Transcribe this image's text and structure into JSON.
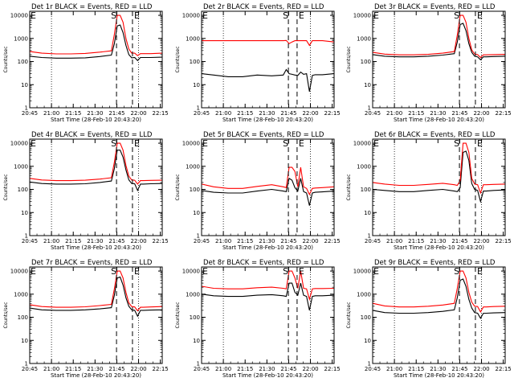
{
  "figure": {
    "x_tick_labels": [
      "20:45",
      "21:00",
      "21:15",
      "21:30",
      "21:45",
      "22:00",
      "22:15"
    ],
    "x_label": "Start Time (28-Feb-10 20:43:20)",
    "y_label": "Counts/sec",
    "marker_start": "S",
    "marker_end": "E",
    "marker_panel_edge": "E"
  },
  "chart_data": [
    {
      "type": "line",
      "title": "Det 1r BLACK = Events, RED = LLD",
      "xlabel": "Start Time (28-Feb-10 20:43:20)",
      "ylabel": "Counts/sec",
      "yscale": "log",
      "xlim_minutes_after_start": [
        1.7,
        93
      ],
      "ylim": [
        1,
        15000
      ],
      "y_tick_labels": [
        "1",
        "10",
        "100",
        "1000",
        "10000"
      ],
      "dotted_lines_minutes": [
        16.7,
        76.7
      ],
      "dashed_lines_minutes": [
        61.5,
        72.5
      ],
      "series": [
        {
          "name": "Events",
          "color": "#000000",
          "x": [
            1.7,
            10,
            20,
            30,
            40,
            50,
            58,
            60,
            62,
            64,
            66,
            68,
            70,
            72,
            74,
            76,
            78,
            80,
            85,
            93
          ],
          "y": [
            170,
            150,
            140,
            140,
            145,
            165,
            190,
            600,
            3500,
            3800,
            1800,
            500,
            200,
            145,
            150,
            110,
            150,
            150,
            150,
            155
          ]
        },
        {
          "name": "LLD",
          "color": "#ff0000",
          "x": [
            1.7,
            10,
            20,
            30,
            40,
            50,
            58,
            60,
            62,
            64,
            66,
            68,
            70,
            72,
            74,
            76,
            78,
            80,
            85,
            93
          ],
          "y": [
            270,
            230,
            215,
            215,
            225,
            255,
            290,
            1500,
            10000,
            10000,
            5000,
            1000,
            350,
            230,
            230,
            180,
            220,
            220,
            220,
            230
          ]
        }
      ]
    },
    {
      "type": "line",
      "title": "Det 2r BLACK = Events, RED = LLD",
      "xlabel": "Start Time (28-Feb-10 20:43:20)",
      "ylabel": "Counts/sec",
      "yscale": "log",
      "xlim_minutes_after_start": [
        1.7,
        93
      ],
      "ylim": [
        1,
        15000
      ],
      "y_tick_labels": [
        "1",
        "10",
        "100",
        "1000",
        "10000"
      ],
      "dotted_lines_minutes": [
        16.7,
        76.7
      ],
      "dashed_lines_minutes": [
        61.5,
        67.5
      ],
      "series": [
        {
          "name": "Events",
          "color": "#000000",
          "x": [
            1.7,
            10,
            20,
            30,
            40,
            50,
            58,
            60,
            62,
            64,
            66,
            68,
            70,
            72,
            74,
            76,
            78,
            80,
            85,
            93
          ],
          "y": [
            30,
            26,
            22,
            22,
            26,
            24,
            26,
            45,
            30,
            28,
            26,
            25,
            35,
            28,
            30,
            5,
            25,
            27,
            27,
            30
          ]
        },
        {
          "name": "LLD",
          "color": "#ff0000",
          "x": [
            1.7,
            10,
            20,
            30,
            40,
            50,
            58,
            60,
            62,
            64,
            66,
            68,
            70,
            72,
            74,
            76,
            78,
            80,
            85,
            93
          ],
          "y": [
            800,
            800,
            800,
            800,
            800,
            800,
            800,
            820,
            600,
            700,
            800,
            800,
            800,
            800,
            800,
            500,
            800,
            800,
            800,
            700
          ]
        }
      ]
    },
    {
      "type": "line",
      "title": "Det 3r BLACK = Events, RED = LLD",
      "xlabel": "Start Time (28-Feb-10 20:43:20)",
      "ylabel": "Counts/sec",
      "yscale": "log",
      "xlim_minutes_after_start": [
        1.7,
        93
      ],
      "ylim": [
        1,
        15000
      ],
      "y_tick_labels": [
        "1",
        "10",
        "100",
        "1000",
        "10000"
      ],
      "dotted_lines_minutes": [
        16.7,
        76.7
      ],
      "dashed_lines_minutes": [
        61.5,
        72.5
      ],
      "series": [
        {
          "name": "Events",
          "color": "#000000",
          "x": [
            1.7,
            10,
            20,
            30,
            40,
            50,
            58,
            60,
            62,
            64,
            66,
            68,
            70,
            72,
            74,
            76,
            78,
            80,
            85,
            93
          ],
          "y": [
            200,
            170,
            160,
            160,
            170,
            190,
            220,
            700,
            4000,
            4500,
            2200,
            600,
            250,
            170,
            160,
            120,
            160,
            160,
            165,
            170
          ]
        },
        {
          "name": "LLD",
          "color": "#ff0000",
          "x": [
            1.7,
            10,
            20,
            30,
            40,
            50,
            58,
            60,
            62,
            64,
            66,
            68,
            70,
            72,
            74,
            76,
            78,
            80,
            85,
            93
          ],
          "y": [
            250,
            210,
            195,
            195,
            205,
            230,
            270,
            1400,
            10000,
            10000,
            5000,
            1000,
            320,
            210,
            200,
            150,
            195,
            195,
            200,
            205
          ]
        }
      ]
    },
    {
      "type": "line",
      "title": "Det 4r BLACK = Events, RED = LLD",
      "xlabel": "Start Time (28-Feb-10 20:43:20)",
      "ylabel": "Counts/sec",
      "yscale": "log",
      "xlim_minutes_after_start": [
        1.7,
        93
      ],
      "ylim": [
        1,
        15000
      ],
      "y_tick_labels": [
        "1",
        "10",
        "100",
        "1000",
        "10000"
      ],
      "dotted_lines_minutes": [
        16.7,
        76.7
      ],
      "dashed_lines_minutes": [
        61.5,
        72.5
      ],
      "series": [
        {
          "name": "Events",
          "color": "#000000",
          "x": [
            1.7,
            10,
            20,
            30,
            40,
            50,
            58,
            60,
            62,
            64,
            66,
            68,
            70,
            72,
            74,
            76,
            78,
            80,
            85,
            93
          ],
          "y": [
            210,
            180,
            170,
            170,
            175,
            200,
            230,
            800,
            5000,
            5000,
            2500,
            700,
            260,
            180,
            175,
            90,
            170,
            170,
            175,
            180
          ]
        },
        {
          "name": "LLD",
          "color": "#ff0000",
          "x": [
            1.7,
            10,
            20,
            30,
            40,
            50,
            58,
            60,
            62,
            64,
            66,
            68,
            70,
            72,
            74,
            76,
            78,
            80,
            85,
            93
          ],
          "y": [
            300,
            255,
            240,
            240,
            250,
            280,
            320,
            1500,
            10000,
            10000,
            5000,
            1100,
            380,
            255,
            250,
            170,
            240,
            240,
            245,
            250
          ]
        }
      ]
    },
    {
      "type": "line",
      "title": "Det 5r BLACK = Events, RED = LLD",
      "xlabel": "Start Time (28-Feb-10 20:43:20)",
      "ylabel": "Counts/sec",
      "yscale": "log",
      "xlim_minutes_after_start": [
        1.7,
        93
      ],
      "ylim": [
        1,
        15000
      ],
      "y_tick_labels": [
        "1",
        "10",
        "100",
        "1000",
        "10000"
      ],
      "dotted_lines_minutes": [
        16.7,
        76.7
      ],
      "dashed_lines_minutes": [
        61.5,
        67.5
      ],
      "series": [
        {
          "name": "Events",
          "color": "#000000",
          "x": [
            1.7,
            10,
            20,
            30,
            40,
            50,
            58,
            60,
            62,
            64,
            66,
            68,
            70,
            72,
            74,
            76,
            78,
            80,
            85,
            93
          ],
          "y": [
            90,
            75,
            70,
            70,
            85,
            100,
            85,
            80,
            300,
            250,
            120,
            85,
            300,
            80,
            70,
            20,
            70,
            75,
            78,
            85
          ]
        },
        {
          "name": "LLD",
          "color": "#ff0000",
          "x": [
            1.7,
            10,
            20,
            30,
            40,
            50,
            58,
            60,
            62,
            64,
            66,
            68,
            70,
            72,
            74,
            76,
            78,
            80,
            85,
            93
          ],
          "y": [
            170,
            130,
            110,
            110,
            135,
            160,
            130,
            120,
            900,
            900,
            600,
            130,
            900,
            130,
            110,
            60,
            110,
            115,
            120,
            130
          ]
        }
      ]
    },
    {
      "type": "line",
      "title": "Det 6r BLACK = Events, RED = LLD",
      "xlabel": "Start Time (28-Feb-10 20:43:20)",
      "ylabel": "Counts/sec",
      "yscale": "log",
      "xlim_minutes_after_start": [
        1.7,
        93
      ],
      "ylim": [
        1,
        15000
      ],
      "y_tick_labels": [
        "1",
        "10",
        "100",
        "1000",
        "10000"
      ],
      "dotted_lines_minutes": [
        16.7,
        76.7
      ],
      "dashed_lines_minutes": [
        61.5,
        72.5
      ],
      "series": [
        {
          "name": "Events",
          "color": "#000000",
          "x": [
            1.7,
            10,
            20,
            30,
            40,
            50,
            58,
            60,
            62,
            64,
            66,
            68,
            70,
            72,
            74,
            76,
            78,
            80,
            85,
            93
          ],
          "y": [
            100,
            90,
            80,
            80,
            90,
            100,
            85,
            80,
            120,
            4000,
            4500,
            1800,
            180,
            100,
            90,
            30,
            85,
            85,
            90,
            95
          ]
        },
        {
          "name": "LLD",
          "color": "#ff0000",
          "x": [
            1.7,
            10,
            20,
            30,
            40,
            50,
            58,
            60,
            62,
            64,
            66,
            68,
            70,
            72,
            74,
            76,
            78,
            80,
            85,
            93
          ],
          "y": [
            200,
            170,
            150,
            150,
            165,
            185,
            160,
            150,
            240,
            10000,
            10000,
            4000,
            300,
            170,
            160,
            70,
            160,
            160,
            165,
            170
          ]
        }
      ]
    },
    {
      "type": "line",
      "title": "Det 7r BLACK = Events, RED = LLD",
      "xlabel": "Start Time (28-Feb-10 20:43:20)",
      "ylabel": "Counts/sec",
      "yscale": "log",
      "xlim_minutes_after_start": [
        1.7,
        93
      ],
      "ylim": [
        1,
        15000
      ],
      "y_tick_labels": [
        "1",
        "10",
        "100",
        "1000",
        "10000"
      ],
      "dotted_lines_minutes": [
        16.7,
        76.7
      ],
      "dashed_lines_minutes": [
        61.5,
        72.5
      ],
      "series": [
        {
          "name": "Events",
          "color": "#000000",
          "x": [
            1.7,
            10,
            20,
            30,
            40,
            50,
            58,
            60,
            62,
            64,
            66,
            68,
            70,
            72,
            74,
            76,
            78,
            80,
            85,
            93
          ],
          "y": [
            250,
            210,
            200,
            200,
            210,
            230,
            260,
            900,
            5000,
            5500,
            2500,
            700,
            300,
            210,
            200,
            110,
            200,
            200,
            205,
            210
          ]
        },
        {
          "name": "LLD",
          "color": "#ff0000",
          "x": [
            1.7,
            10,
            20,
            30,
            40,
            50,
            58,
            60,
            62,
            64,
            66,
            68,
            70,
            72,
            74,
            76,
            78,
            80,
            85,
            93
          ],
          "y": [
            350,
            290,
            270,
            270,
            285,
            320,
            360,
            1700,
            10000,
            10000,
            5000,
            1200,
            420,
            290,
            280,
            190,
            270,
            270,
            280,
            290
          ]
        }
      ]
    },
    {
      "type": "line",
      "title": "Det 8r BLACK = Events, RED = LLD",
      "xlabel": "Start Time (28-Feb-10 20:43:20)",
      "ylabel": "Counts/sec",
      "yscale": "log",
      "xlim_minutes_after_start": [
        1.7,
        93
      ],
      "ylim": [
        1,
        15000
      ],
      "y_tick_labels": [
        "1",
        "10",
        "100",
        "1000",
        "10000"
      ],
      "dotted_lines_minutes": [
        16.7,
        76.7
      ],
      "dashed_lines_minutes": [
        61.5,
        67.5
      ],
      "series": [
        {
          "name": "Events",
          "color": "#000000",
          "x": [
            1.7,
            10,
            20,
            30,
            40,
            50,
            58,
            60,
            62,
            64,
            66,
            68,
            70,
            72,
            74,
            76,
            78,
            80,
            85,
            93
          ],
          "y": [
            1000,
            850,
            800,
            800,
            900,
            950,
            850,
            800,
            3000,
            3000,
            1200,
            900,
            3000,
            900,
            800,
            200,
            800,
            850,
            850,
            900
          ]
        },
        {
          "name": "LLD",
          "color": "#ff0000",
          "x": [
            1.7,
            10,
            20,
            30,
            40,
            50,
            58,
            60,
            62,
            64,
            66,
            68,
            70,
            72,
            74,
            76,
            78,
            80,
            85,
            93
          ],
          "y": [
            2200,
            1800,
            1700,
            1700,
            1900,
            2000,
            1800,
            1700,
            10000,
            10000,
            5000,
            1800,
            10000,
            1800,
            1700,
            600,
            1700,
            1750,
            1750,
            1800
          ]
        }
      ]
    },
    {
      "type": "line",
      "title": "Det 9r BLACK = Events, RED = LLD",
      "xlabel": "Start Time (28-Feb-10 20:43:20)",
      "ylabel": "Counts/sec",
      "yscale": "log",
      "xlim_minutes_after_start": [
        1.7,
        93
      ],
      "ylim": [
        1,
        15000
      ],
      "y_tick_labels": [
        "1",
        "10",
        "100",
        "1000",
        "10000"
      ],
      "dotted_lines_minutes": [
        16.7,
        76.7
      ],
      "dashed_lines_minutes": [
        61.5,
        72.5
      ],
      "series": [
        {
          "name": "Events",
          "color": "#000000",
          "x": [
            1.7,
            10,
            20,
            30,
            40,
            50,
            58,
            60,
            62,
            64,
            66,
            68,
            70,
            72,
            74,
            76,
            78,
            80,
            85,
            93
          ],
          "y": [
            200,
            160,
            150,
            150,
            160,
            180,
            210,
            700,
            4000,
            4500,
            2200,
            600,
            250,
            160,
            150,
            90,
            150,
            150,
            155,
            160
          ]
        },
        {
          "name": "LLD",
          "color": "#ff0000",
          "x": [
            1.7,
            10,
            20,
            30,
            40,
            50,
            58,
            60,
            62,
            64,
            66,
            68,
            70,
            72,
            74,
            76,
            78,
            80,
            85,
            93
          ],
          "y": [
            400,
            310,
            280,
            280,
            300,
            340,
            400,
            1800,
            10000,
            10000,
            5000,
            1200,
            450,
            300,
            290,
            170,
            280,
            280,
            290,
            300
          ]
        }
      ]
    }
  ]
}
